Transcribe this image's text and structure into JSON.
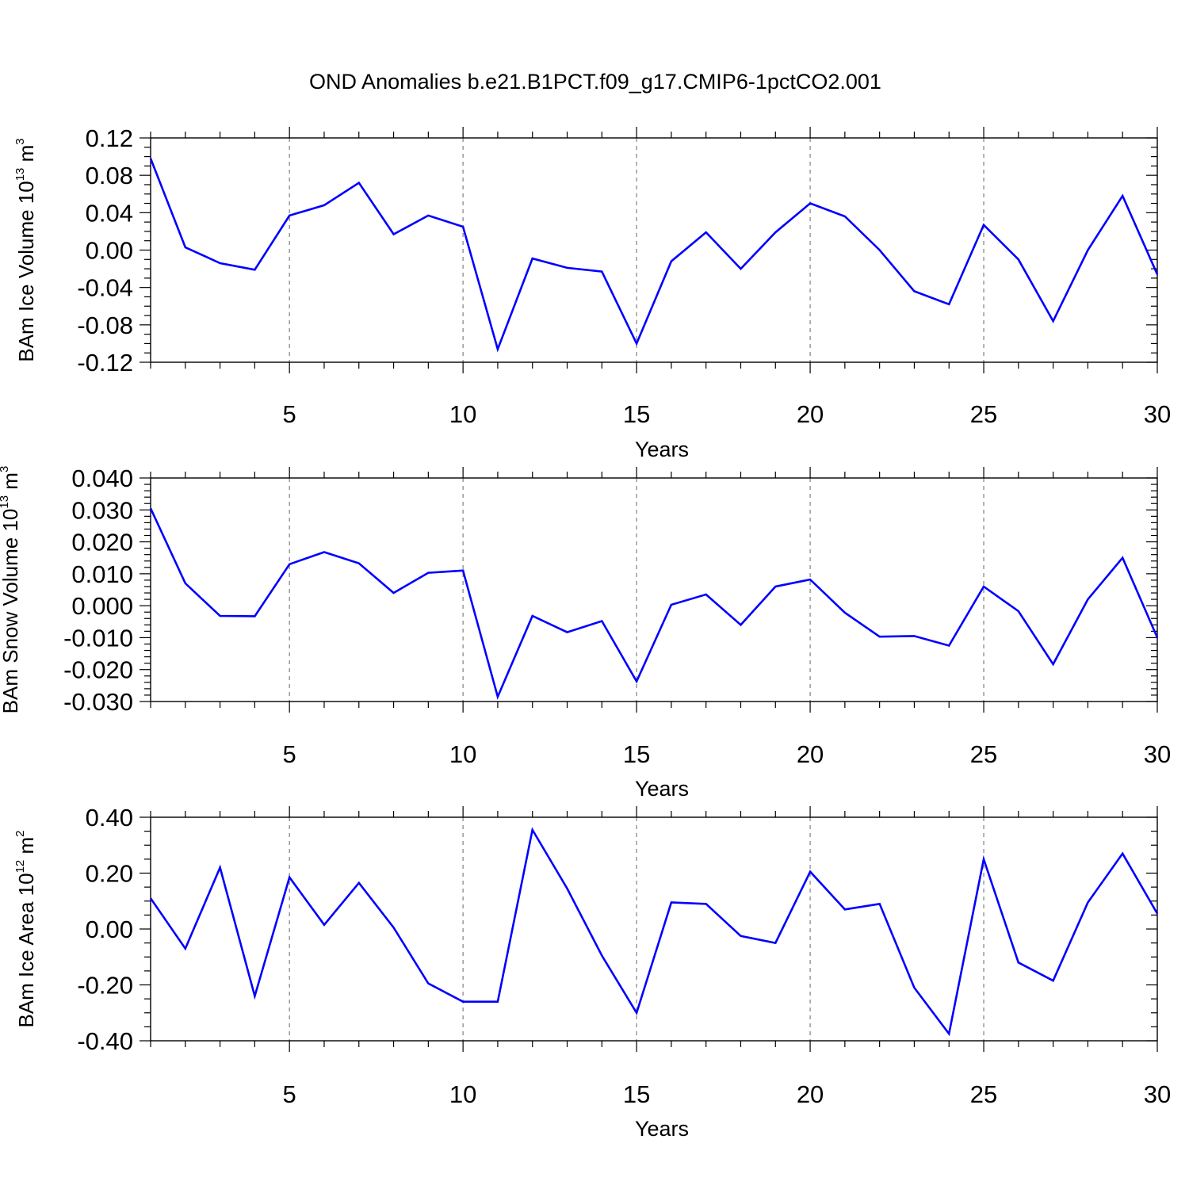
{
  "colors": {
    "series": "#0000ff",
    "axes": "#000000",
    "grid": "#808080",
    "background": "#ffffff"
  },
  "chart_data": [
    {
      "type": "line",
      "title": "OND Anomalies b.e21.B1PCT.f09_g17.CMIP6-1pctCO2.001",
      "ylabel": {
        "base": "BAm Ice Volume 10",
        "exp": "13",
        "unit": " m",
        "unit_exp": "3"
      },
      "xlabel": "Years",
      "xlim": [
        1,
        30
      ],
      "ylim": [
        -0.12,
        0.12
      ],
      "yticks": [
        -0.12,
        -0.08,
        -0.04,
        0.0,
        0.04,
        0.08,
        0.12
      ],
      "ytick_labels": [
        "-0.12",
        "-0.08",
        "-0.04",
        "0.00",
        "0.04",
        "0.08",
        "0.12"
      ],
      "yminor_step": 0.01,
      "xticks": [
        5,
        10,
        15,
        20,
        25,
        30
      ],
      "xtick_labels": [
        "5",
        "10",
        "15",
        "20",
        "25",
        "30"
      ],
      "grid": "vertical dashed at major x ticks",
      "x": [
        1,
        2,
        3,
        4,
        5,
        6,
        7,
        8,
        9,
        10,
        11,
        12,
        13,
        14,
        15,
        16,
        17,
        18,
        19,
        20,
        21,
        22,
        23,
        24,
        25,
        26,
        27,
        28,
        29,
        30
      ],
      "series": [
        {
          "name": "BAm Ice Volume",
          "values": [
            0.098,
            0.003,
            -0.014,
            -0.021,
            0.037,
            0.048,
            0.072,
            0.017,
            0.037,
            0.025,
            -0.106,
            -0.009,
            -0.019,
            -0.023,
            -0.1,
            -0.012,
            0.019,
            -0.02,
            0.019,
            0.05,
            0.036,
            0.0,
            -0.044,
            -0.058,
            0.027,
            -0.01,
            -0.076,
            0.0,
            0.058,
            -0.026
          ]
        }
      ]
    },
    {
      "type": "line",
      "ylabel": {
        "base": "BAm Snow Volume 10",
        "exp": "13",
        "unit": " m",
        "unit_exp": "3"
      },
      "xlabel": "Years",
      "xlim": [
        1,
        30
      ],
      "ylim": [
        -0.03,
        0.04
      ],
      "yticks": [
        -0.03,
        -0.02,
        -0.01,
        0.0,
        0.01,
        0.02,
        0.03,
        0.04
      ],
      "ytick_labels": [
        "-0.030",
        "-0.020",
        "-0.010",
        "0.000",
        "0.010",
        "0.020",
        "0.030",
        "0.040"
      ],
      "yminor_step": 0.002,
      "xticks": [
        5,
        10,
        15,
        20,
        25,
        30
      ],
      "xtick_labels": [
        "5",
        "10",
        "15",
        "20",
        "25",
        "30"
      ],
      "grid": "vertical dashed at major x ticks",
      "x": [
        1,
        2,
        3,
        4,
        5,
        6,
        7,
        8,
        9,
        10,
        11,
        12,
        13,
        14,
        15,
        16,
        17,
        18,
        19,
        20,
        21,
        22,
        23,
        24,
        25,
        26,
        27,
        28,
        29,
        30
      ],
      "series": [
        {
          "name": "BAm Snow Volume",
          "values": [
            0.0305,
            0.007,
            -0.0032,
            -0.0033,
            0.013,
            0.0168,
            0.0133,
            0.004,
            0.0103,
            0.011,
            -0.0285,
            -0.0032,
            -0.0083,
            -0.0048,
            -0.0237,
            0.0003,
            0.0035,
            -0.006,
            0.006,
            0.0082,
            -0.0022,
            -0.0097,
            -0.0095,
            -0.0125,
            0.006,
            -0.0017,
            -0.0183,
            0.002,
            0.015,
            -0.01
          ]
        }
      ]
    },
    {
      "type": "line",
      "ylabel": {
        "base": "BAm Ice Area 10",
        "exp": "12",
        "unit": " m",
        "unit_exp": "2"
      },
      "xlabel": "Years",
      "xlim": [
        1,
        30
      ],
      "ylim": [
        -0.4,
        0.4
      ],
      "yticks": [
        -0.4,
        -0.2,
        0.0,
        0.2,
        0.4
      ],
      "ytick_labels": [
        "-0.40",
        "-0.20",
        "0.00",
        "0.20",
        "0.40"
      ],
      "yminor_step": 0.05,
      "xticks": [
        5,
        10,
        15,
        20,
        25,
        30
      ],
      "xtick_labels": [
        "5",
        "10",
        "15",
        "20",
        "25",
        "30"
      ],
      "grid": "vertical dashed at major x ticks",
      "x": [
        1,
        2,
        3,
        4,
        5,
        6,
        7,
        8,
        9,
        10,
        11,
        12,
        13,
        14,
        15,
        16,
        17,
        18,
        19,
        20,
        21,
        22,
        23,
        24,
        25,
        26,
        27,
        28,
        29,
        30
      ],
      "series": [
        {
          "name": "BAm Ice Area",
          "values": [
            0.11,
            -0.07,
            0.22,
            -0.24,
            0.185,
            0.015,
            0.165,
            0.005,
            -0.195,
            -0.26,
            -0.26,
            0.355,
            0.145,
            -0.095,
            -0.3,
            0.095,
            0.09,
            -0.025,
            -0.05,
            0.205,
            0.07,
            0.09,
            -0.21,
            -0.375,
            0.25,
            -0.12,
            -0.185,
            0.095,
            0.27,
            0.055
          ]
        }
      ]
    }
  ]
}
